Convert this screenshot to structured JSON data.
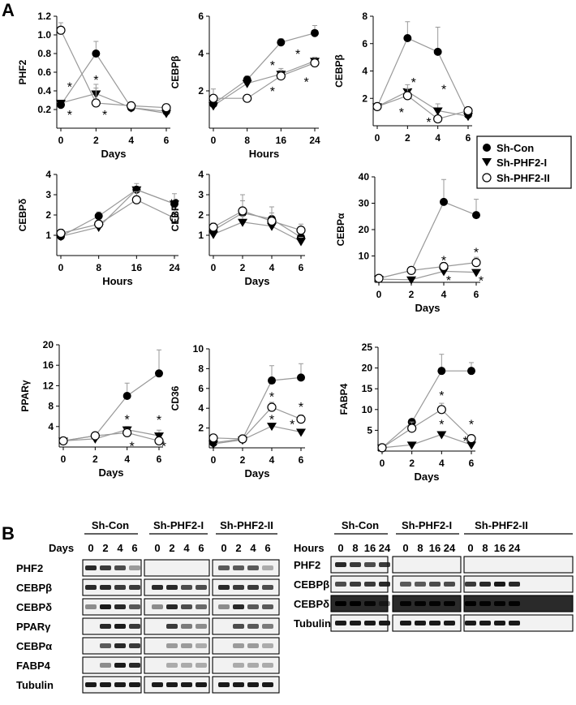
{
  "panels": {
    "A": "A",
    "B": "B"
  },
  "legend": {
    "entries": [
      {
        "label": "Sh-Con",
        "marker": "filled-circle"
      },
      {
        "label": "Sh-PHF2-I",
        "marker": "filled-triangle-down"
      },
      {
        "label": "Sh-PHF2-II",
        "marker": "open-circle"
      }
    ]
  },
  "colors": {
    "line": "#999999",
    "ink": "#000000",
    "band": "#1a1a1a",
    "bandBg": "#f2f2f2"
  },
  "chart_data": [
    {
      "type": "line",
      "ylabel": "PHF2",
      "xlabel": "Days",
      "x": [
        0,
        2,
        4,
        6
      ],
      "xticks": [
        "0",
        "2",
        "4",
        "6"
      ],
      "ylim": [
        0,
        1.2
      ],
      "yticks": [
        "0.2",
        "0.4",
        "0.6",
        "0.8",
        "1.0",
        "1.2"
      ],
      "ytickvals": [
        0.2,
        0.4,
        0.6,
        0.8,
        1.0,
        1.2
      ],
      "series": [
        {
          "name": "Sh-Con",
          "marker": "filled-circle",
          "values": [
            0.25,
            0.8,
            0.22,
            0.18
          ],
          "err": [
            0,
            0.13,
            0,
            0.04
          ]
        },
        {
          "name": "Sh-PHF2-I",
          "marker": "filled-triangle-down",
          "values": [
            0.27,
            0.37,
            0.22,
            0.16
          ],
          "err": [
            0,
            0.06,
            0,
            0
          ]
        },
        {
          "name": "Sh-PHF2-II",
          "marker": "open-circle",
          "values": [
            1.05,
            0.27,
            0.24,
            0.22
          ],
          "err": [
            0.08,
            0.2,
            0,
            0
          ]
        }
      ],
      "stars": [
        [
          0.5,
          0.45
        ],
        [
          0.5,
          0.15
        ],
        [
          2,
          0.52
        ],
        [
          2.5,
          0.15
        ]
      ]
    },
    {
      "type": "line",
      "ylabel": "CEBPβ",
      "xlabel": "Hours",
      "x": [
        0,
        8,
        16,
        24
      ],
      "xticks": [
        "0",
        "8",
        "16",
        "24"
      ],
      "ylim": [
        0,
        6
      ],
      "yticks": [
        "2",
        "4",
        "6"
      ],
      "ytickvals": [
        2,
        4,
        6
      ],
      "series": [
        {
          "name": "Sh-Con",
          "marker": "filled-circle",
          "values": [
            1.3,
            2.6,
            4.6,
            5.1
          ],
          "err": [
            0,
            0.2,
            0.2,
            0.4
          ]
        },
        {
          "name": "Sh-PHF2-I",
          "marker": "filled-triangle-down",
          "values": [
            1.2,
            2.4,
            2.9,
            3.6
          ],
          "err": [
            0,
            0,
            0.3,
            0.2
          ]
        },
        {
          "name": "Sh-PHF2-II",
          "marker": "open-circle",
          "values": [
            1.6,
            1.6,
            2.8,
            3.5
          ],
          "err": [
            0.5,
            0,
            0.3,
            0.3
          ]
        }
      ],
      "stars": [
        [
          14,
          3.4
        ],
        [
          14,
          2.0
        ],
        [
          20,
          4.0
        ],
        [
          22,
          2.5
        ]
      ]
    },
    {
      "type": "line",
      "ylabel": "CEBPβ",
      "xlabel": "",
      "x": [
        0,
        2,
        4,
        6
      ],
      "xticks": [
        "0",
        "2",
        "4",
        "6"
      ],
      "ylim": [
        0,
        8
      ],
      "yticks": [
        "2",
        "4",
        "6",
        "8"
      ],
      "ytickvals": [
        2,
        4,
        6,
        8
      ],
      "series": [
        {
          "name": "Sh-Con",
          "marker": "filled-circle",
          "values": [
            1.4,
            6.4,
            5.4,
            0.8
          ],
          "err": [
            0,
            1.2,
            1.8,
            0
          ]
        },
        {
          "name": "Sh-PHF2-I",
          "marker": "filled-triangle-down",
          "values": [
            1.4,
            2.5,
            1.1,
            0.7
          ],
          "err": [
            0,
            0.5,
            0.5,
            0
          ]
        },
        {
          "name": "Sh-PHF2-II",
          "marker": "open-circle",
          "values": [
            1.4,
            2.2,
            0.5,
            1.1
          ],
          "err": [
            0,
            0.5,
            0,
            0
          ]
        }
      ],
      "stars": [
        [
          2.4,
          3.2
        ],
        [
          1.6,
          1.0
        ],
        [
          4.4,
          2.7
        ],
        [
          3.4,
          0.3
        ]
      ]
    },
    {
      "type": "line",
      "ylabel": "CEBPδ",
      "xlabel": "Hours",
      "x": [
        0,
        8,
        16,
        24
      ],
      "xticks": [
        "0",
        "8",
        "16",
        "24"
      ],
      "ylim": [
        0,
        4
      ],
      "yticks": [
        "1",
        "2",
        "3",
        "4"
      ],
      "ytickvals": [
        1,
        2,
        3,
        4
      ],
      "series": [
        {
          "name": "Sh-Con",
          "marker": "filled-circle",
          "values": [
            0.95,
            1.95,
            3.25,
            2.55
          ],
          "err": [
            0,
            0.2,
            0.3,
            0.5
          ]
        },
        {
          "name": "Sh-PHF2-I",
          "marker": "filled-triangle-down",
          "values": [
            0.95,
            1.4,
            3.25,
            2.55
          ],
          "err": [
            0,
            0.2,
            0,
            0
          ]
        },
        {
          "name": "Sh-PHF2-II",
          "marker": "open-circle",
          "values": [
            1.1,
            1.55,
            2.75,
            1.85
          ],
          "err": [
            0.2,
            0.2,
            0.4,
            0.5
          ]
        }
      ],
      "stars": []
    },
    {
      "type": "line",
      "ylabel": "CEBPδ",
      "xlabel": "Days",
      "x": [
        0,
        2,
        4,
        6
      ],
      "xticks": [
        "0",
        "2",
        "4",
        "6"
      ],
      "ylim": [
        0,
        4
      ],
      "yticks": [
        "1",
        "2",
        "3",
        "4"
      ],
      "ytickvals": [
        1,
        2,
        3,
        4
      ],
      "series": [
        {
          "name": "Sh-Con",
          "marker": "filled-circle",
          "values": [
            1.25,
            2.1,
            1.8,
            0.9
          ],
          "err": [
            0.2,
            0.9,
            0.6,
            0.3
          ]
        },
        {
          "name": "Sh-PHF2-I",
          "marker": "filled-triangle-down",
          "values": [
            1.05,
            1.65,
            1.45,
            0.7
          ],
          "err": [
            0.2,
            0.3,
            0.4,
            0.2
          ]
        },
        {
          "name": "Sh-PHF2-II",
          "marker": "open-circle",
          "values": [
            1.4,
            2.2,
            1.7,
            1.25
          ],
          "err": [
            0.2,
            0.5,
            0.4,
            0.3
          ]
        }
      ],
      "stars": []
    },
    {
      "type": "line",
      "ylabel": "CEBPα",
      "xlabel": "Days",
      "x": [
        0,
        2,
        4,
        6
      ],
      "xticks": [
        "0",
        "2",
        "4",
        "6"
      ],
      "ylim": [
        0,
        40
      ],
      "yticks": [
        "10",
        "20",
        "30",
        "40"
      ],
      "ytickvals": [
        10,
        20,
        30,
        40
      ],
      "series": [
        {
          "name": "Sh-Con",
          "marker": "filled-circle",
          "values": [
            1.5,
            4.5,
            30.5,
            25.5
          ],
          "err": [
            0,
            0,
            8.5,
            6
          ]
        },
        {
          "name": "Sh-PHF2-I",
          "marker": "filled-triangle-down",
          "values": [
            1.2,
            1.0,
            4.2,
            3.8
          ],
          "err": [
            0,
            0,
            0,
            0
          ]
        },
        {
          "name": "Sh-PHF2-II",
          "marker": "open-circle",
          "values": [
            1.5,
            4.5,
            6.0,
            7.5
          ],
          "err": [
            0,
            0,
            1.5,
            2
          ]
        }
      ],
      "stars": [
        [
          4,
          8.5
        ],
        [
          4.3,
          1.0
        ],
        [
          6,
          11.5
        ],
        [
          6.3,
          0.8
        ]
      ]
    },
    {
      "type": "line",
      "ylabel": "PPARγ",
      "xlabel": "Days",
      "x": [
        0,
        2,
        4,
        6
      ],
      "xticks": [
        "0",
        "2",
        "4",
        "6"
      ],
      "ylim": [
        0,
        20
      ],
      "yticks": [
        "4",
        "8",
        "12",
        "16",
        "20"
      ],
      "ytickvals": [
        4,
        8,
        12,
        16,
        20
      ],
      "series": [
        {
          "name": "Sh-Con",
          "marker": "filled-circle",
          "values": [
            1.2,
            2.2,
            10.0,
            14.4
          ],
          "err": [
            0,
            0,
            2.5,
            4.6
          ]
        },
        {
          "name": "Sh-PHF2-I",
          "marker": "filled-triangle-down",
          "values": [
            1.2,
            1.6,
            3.4,
            2.2
          ],
          "err": [
            0,
            0,
            0.6,
            1.1
          ]
        },
        {
          "name": "Sh-PHF2-II",
          "marker": "open-circle",
          "values": [
            1.2,
            2.2,
            2.8,
            1.2
          ],
          "err": [
            0,
            0,
            0.8,
            0.4
          ]
        }
      ],
      "stars": [
        [
          4,
          5.5
        ],
        [
          4.3,
          0.2
        ],
        [
          6,
          5.4
        ],
        [
          6.3,
          0.2
        ]
      ]
    },
    {
      "type": "line",
      "ylabel": "CD36",
      "xlabel": "Days",
      "x": [
        0,
        2,
        4,
        6
      ],
      "xticks": [
        "0",
        "2",
        "4",
        "6"
      ],
      "ylim": [
        0,
        10
      ],
      "yticks": [
        "2",
        "4",
        "6",
        "8",
        "10"
      ],
      "ytickvals": [
        2,
        4,
        6,
        8,
        10
      ],
      "series": [
        {
          "name": "Sh-Con",
          "marker": "filled-circle",
          "values": [
            0.5,
            0.9,
            6.8,
            7.1
          ],
          "err": [
            0,
            0,
            1.5,
            1.4
          ]
        },
        {
          "name": "Sh-PHF2-I",
          "marker": "filled-triangle-down",
          "values": [
            0.4,
            0.8,
            2.2,
            1.6
          ],
          "err": [
            0,
            0,
            0.3,
            0
          ]
        },
        {
          "name": "Sh-PHF2-II",
          "marker": "open-circle",
          "values": [
            1.0,
            0.9,
            4.1,
            2.9
          ],
          "err": [
            0,
            0,
            0.5,
            0.4
          ]
        }
      ],
      "stars": [
        [
          4,
          5.2
        ],
        [
          4,
          2.9
        ],
        [
          6,
          4.2
        ],
        [
          5.4,
          2.4
        ]
      ]
    },
    {
      "type": "line",
      "ylabel": "FABP4",
      "xlabel": "Days",
      "x": [
        0,
        2,
        4,
        6
      ],
      "xticks": [
        "0",
        "2",
        "4",
        "6"
      ],
      "ylim": [
        0,
        25
      ],
      "yticks": [
        "5",
        "10",
        "15",
        "20",
        "25"
      ],
      "ytickvals": [
        5,
        10,
        15,
        20,
        25
      ],
      "series": [
        {
          "name": "Sh-Con",
          "marker": "filled-circle",
          "values": [
            0.8,
            7.0,
            19.3,
            19.3
          ],
          "err": [
            0,
            0,
            4,
            2
          ]
        },
        {
          "name": "Sh-PHF2-I",
          "marker": "filled-triangle-down",
          "values": [
            0.8,
            1.5,
            4.0,
            1.5
          ],
          "err": [
            0,
            0,
            0,
            0
          ]
        },
        {
          "name": "Sh-PHF2-II",
          "marker": "open-circle",
          "values": [
            0.8,
            5.5,
            10.0,
            3.0
          ],
          "err": [
            0,
            1.5,
            1.5,
            0
          ]
        }
      ],
      "stars": [
        [
          4,
          13.5
        ],
        [
          4,
          6.5
        ],
        [
          6,
          6.5
        ],
        [
          5.6,
          2.5
        ]
      ]
    }
  ],
  "blotLeft": {
    "groups": [
      "Sh-Con",
      "Sh-PHF2-I",
      "Sh-PHF2-II"
    ],
    "axisLabel": "Days",
    "lanes": [
      "0",
      "2",
      "4",
      "6",
      "0",
      "2",
      "4",
      "6",
      "0",
      "2",
      "4",
      "6"
    ],
    "rows": [
      {
        "label": "PHF2",
        "intensity": [
          0.9,
          0.8,
          0.7,
          0.2,
          0,
          0,
          0,
          0,
          0.6,
          0.6,
          0.6,
          0.1
        ]
      },
      {
        "label": "CEBPβ",
        "intensity": [
          0.9,
          0.9,
          0.8,
          0.8,
          0.9,
          0.9,
          0.7,
          0.7,
          0.9,
          0.8,
          0.8,
          0.7
        ]
      },
      {
        "label": "CEBPδ",
        "intensity": [
          0.3,
          1,
          0.9,
          0.6,
          0.3,
          0.9,
          0.7,
          0.5,
          0.3,
          0.9,
          0.6,
          0.6
        ]
      },
      {
        "label": "PPARγ",
        "intensity": [
          0,
          0.9,
          1,
          0.8,
          0,
          0.8,
          0.4,
          0.3,
          0,
          0.7,
          0.6,
          0.4
        ]
      },
      {
        "label": "CEBPα",
        "intensity": [
          0,
          0.6,
          0.9,
          0.8,
          0,
          0.2,
          0.2,
          0.1,
          0,
          0.2,
          0.2,
          0.1
        ]
      },
      {
        "label": "FABP4",
        "intensity": [
          0,
          0.3,
          1,
          0.9,
          0,
          0.1,
          0.1,
          0.1,
          0,
          0.1,
          0.1,
          0.1
        ]
      },
      {
        "label": "Tubulin",
        "intensity": [
          1,
          1,
          1,
          1,
          1,
          1,
          1,
          1,
          1,
          1,
          1,
          1
        ]
      }
    ]
  },
  "blotRight": {
    "groups": [
      "Sh-Con",
      "Sh-PHF2-I",
      "Sh-PHF2-II"
    ],
    "axisLabel": "Hours",
    "lanes": [
      "0",
      "8",
      "16",
      "24",
      "0",
      "8",
      "16",
      "24",
      "0",
      "8",
      "16",
      "24"
    ],
    "rows": [
      {
        "label": "PHF2",
        "intensity": [
          0.9,
          0.8,
          0.7,
          0.8,
          0,
          0,
          0,
          0,
          0,
          0,
          0,
          0
        ]
      },
      {
        "label": "CEBPβ",
        "intensity": [
          0.7,
          0.8,
          0.8,
          0.9,
          0.6,
          0.6,
          0.7,
          0.7,
          0.8,
          0.9,
          1,
          0.9
        ]
      },
      {
        "label": "CEBPδ",
        "intensity": [
          1,
          1,
          0.8,
          0.3,
          0.9,
          0.9,
          0.9,
          0.9,
          1,
          0.9,
          0.9,
          0.9
        ]
      },
      {
        "label": "Tubulin",
        "intensity": [
          1,
          1,
          1,
          1,
          1,
          1,
          1,
          1,
          1,
          1,
          1,
          1
        ]
      }
    ]
  }
}
